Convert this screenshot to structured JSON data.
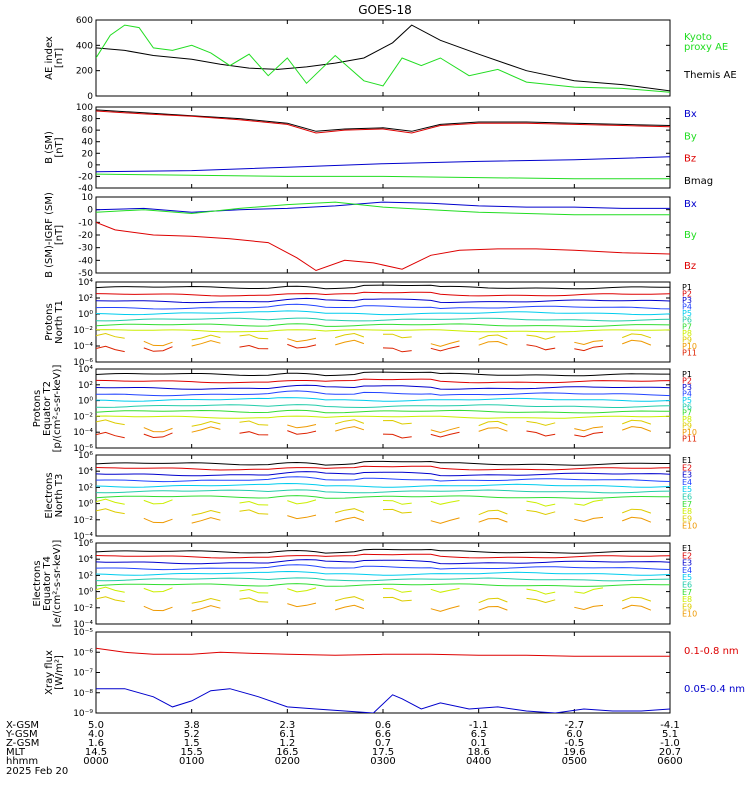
{
  "title": "GOES-18",
  "colors": {
    "black": "#000000",
    "red": "#dd0000",
    "green": "#22dd22",
    "blue": "#0000cc",
    "series": [
      "#000000",
      "#dd0000",
      "#0000cc",
      "#2244ff",
      "#00ccee",
      "#22ccaa",
      "#33dd33",
      "#ccee00",
      "#ddcc00",
      "#ee9900",
      "#dd2200",
      "#cc0000",
      "#aa0000"
    ]
  },
  "chart_data": [
    {
      "id": "ae",
      "type": "line",
      "ylabel": "AE index",
      "yunit": "[nT]",
      "ylim": [
        0,
        600
      ],
      "ticks": [
        "0",
        "200",
        "400",
        "600"
      ],
      "tick_values": [
        0,
        200,
        400,
        600
      ],
      "legend": [
        {
          "text": "Kyoto",
          "color": "#22dd22"
        },
        {
          "text": "proxy AE",
          "color": "#22dd22"
        },
        {
          "text": "Themis AE",
          "color": "#000000"
        }
      ],
      "series": [
        {
          "color": "#000000",
          "x": [
            0,
            0.3,
            0.6,
            1.0,
            1.3,
            1.6,
            1.9,
            2.2,
            2.5,
            2.8,
            3.1,
            3.3,
            3.6,
            4.0,
            4.5,
            5.0,
            5.5,
            6.0
          ],
          "y": [
            380,
            360,
            320,
            290,
            250,
            220,
            210,
            230,
            260,
            300,
            420,
            560,
            440,
            330,
            200,
            120,
            90,
            40
          ]
        },
        {
          "color": "#22dd22",
          "x": [
            0,
            0.15,
            0.3,
            0.45,
            0.6,
            0.8,
            1.0,
            1.2,
            1.4,
            1.6,
            1.8,
            2.0,
            2.2,
            2.5,
            2.8,
            3.0,
            3.2,
            3.4,
            3.6,
            3.9,
            4.2,
            4.5,
            5.0,
            5.5,
            6.0
          ],
          "y": [
            300,
            480,
            560,
            540,
            380,
            360,
            400,
            340,
            240,
            330,
            160,
            300,
            100,
            320,
            120,
            80,
            300,
            240,
            300,
            160,
            210,
            110,
            70,
            60,
            30
          ]
        }
      ]
    },
    {
      "id": "bsm",
      "type": "line",
      "ylabel": "B (SM)",
      "yunit": "[nT]",
      "ylim": [
        -40,
        100
      ],
      "ticks": [
        "100",
        "80",
        "60",
        "40",
        "20",
        "0",
        "-20",
        "-40"
      ],
      "tick_values": [
        100,
        80,
        60,
        40,
        20,
        0,
        -20,
        -40
      ],
      "legend": [
        {
          "text": "Bx",
          "color": "#0000cc"
        },
        {
          "text": "By",
          "color": "#22dd22"
        },
        {
          "text": "Bz",
          "color": "#dd0000"
        },
        {
          "text": "Bmag",
          "color": "#000000"
        }
      ],
      "series": [
        {
          "color": "#000000",
          "x": [
            0,
            0.5,
            1.0,
            1.5,
            2.0,
            2.3,
            2.6,
            3.0,
            3.3,
            3.6,
            4.0,
            4.5,
            5.0,
            5.5,
            6.0
          ],
          "y": [
            95,
            90,
            85,
            80,
            72,
            58,
            62,
            64,
            58,
            70,
            74,
            74,
            72,
            70,
            68
          ]
        },
        {
          "color": "#dd0000",
          "x": [
            0,
            0.5,
            1.0,
            1.5,
            2.0,
            2.3,
            2.6,
            3.0,
            3.3,
            3.6,
            4.0,
            4.5,
            5.0,
            5.5,
            6.0
          ],
          "y": [
            93,
            88,
            84,
            78,
            70,
            55,
            60,
            62,
            55,
            68,
            72,
            72,
            70,
            68,
            66
          ]
        },
        {
          "color": "#0000cc",
          "x": [
            0,
            1.0,
            2.0,
            3.0,
            4.0,
            5.0,
            6.0
          ],
          "y": [
            -12,
            -10,
            -4,
            2,
            6,
            9,
            14
          ]
        },
        {
          "color": "#22dd22",
          "x": [
            0,
            1.0,
            2.0,
            3.0,
            4.0,
            5.0,
            6.0
          ],
          "y": [
            -16,
            -18,
            -20,
            -20,
            -22,
            -24,
            -24
          ]
        }
      ]
    },
    {
      "id": "bigrf",
      "type": "line",
      "ylabel": "B (SM)-IGRF (SM)",
      "yunit": "[nT]",
      "ylim": [
        -50,
        10
      ],
      "ticks": [
        "10",
        "0",
        "-10",
        "-20",
        "-30",
        "-40",
        "-50"
      ],
      "tick_values": [
        10,
        0,
        -10,
        -20,
        -30,
        -40,
        -50
      ],
      "legend": [
        {
          "text": "Bx",
          "color": "#0000cc"
        },
        {
          "text": "By",
          "color": "#22dd22"
        },
        {
          "text": "Bz",
          "color": "#dd0000"
        }
      ],
      "series": [
        {
          "color": "#0000cc",
          "x": [
            0,
            0.5,
            1.0,
            1.5,
            2.0,
            2.5,
            3.0,
            3.5,
            4.0,
            4.5,
            5.0,
            5.5,
            6.0
          ],
          "y": [
            0,
            1,
            -2,
            0,
            1,
            3,
            6,
            5,
            3,
            2,
            2,
            1,
            1
          ]
        },
        {
          "color": "#22dd22",
          "x": [
            0,
            0.5,
            1.0,
            1.5,
            2.0,
            2.5,
            3.0,
            3.5,
            4.0,
            4.5,
            5.0,
            5.5,
            6.0
          ],
          "y": [
            -2,
            0,
            -3,
            1,
            4,
            6,
            2,
            0,
            -2,
            -3,
            -4,
            -4,
            -4
          ]
        },
        {
          "color": "#dd0000",
          "x": [
            0,
            0.2,
            0.6,
            1.0,
            1.4,
            1.8,
            2.1,
            2.3,
            2.6,
            2.9,
            3.2,
            3.5,
            3.8,
            4.2,
            4.6,
            5.0,
            5.5,
            6.0
          ],
          "y": [
            -10,
            -16,
            -20,
            -21,
            -23,
            -26,
            -38,
            -48,
            -40,
            -42,
            -47,
            -36,
            -32,
            -31,
            -31,
            -32,
            -34,
            -35
          ]
        }
      ]
    },
    {
      "id": "pT1",
      "type": "line",
      "scale": "log",
      "ylabel": "Protons",
      "ylabel2": "North T1",
      "ylim": [
        -6,
        4
      ],
      "ticks": [
        "10⁴",
        "10²",
        "10⁰",
        "10⁻²",
        "10⁻⁴",
        "10⁻⁶"
      ],
      "tick_values": [
        4,
        2,
        0,
        -2,
        -4,
        -6
      ],
      "legend": [
        "P1",
        "P2",
        "P3",
        "P4",
        "P5",
        "P6",
        "P7",
        "P8",
        "P9",
        "P10",
        "P11"
      ],
      "levels": [
        3.3,
        2.4,
        1.6,
        0.8,
        0.1,
        -0.7,
        -1.4,
        -2.1,
        -2.8,
        -3.6,
        -4.3
      ]
    },
    {
      "id": "pT2",
      "type": "line",
      "scale": "log",
      "ylabel": "Protons",
      "ylabel2": "Equator T2",
      "yunit": "[p/(cm²-s-sr-keV)]",
      "ylim": [
        -6,
        4
      ],
      "ticks": [
        "10⁴",
        "10²",
        "10⁰",
        "10⁻²",
        "10⁻⁴",
        "10⁻⁶"
      ],
      "tick_values": [
        4,
        2,
        0,
        -2,
        -4,
        -6
      ],
      "legend": [
        "P1",
        "P2",
        "P3",
        "P4",
        "P5",
        "P6",
        "P7",
        "P8",
        "P9",
        "P10",
        "P11"
      ],
      "levels": [
        3.3,
        2.4,
        1.6,
        0.8,
        0.1,
        -0.7,
        -1.4,
        -2.1,
        -2.8,
        -3.6,
        -4.3
      ]
    },
    {
      "id": "eT3",
      "type": "line",
      "scale": "log",
      "ylabel": "Electrons",
      "ylabel2": "North T3",
      "ylim": [
        -4,
        6
      ],
      "ticks": [
        "10⁶",
        "10⁴",
        "10²",
        "10⁰",
        "10⁻²",
        "10⁻⁴"
      ],
      "tick_values": [
        6,
        4,
        2,
        0,
        -2,
        -4
      ],
      "legend": [
        "E1",
        "E2",
        "E3",
        "E4",
        "E5",
        "E6",
        "E7",
        "E8",
        "E9",
        "E10"
      ],
      "levels": [
        4.9,
        4.3,
        3.6,
        2.9,
        2.2,
        1.5,
        0.8,
        0.1,
        -1.0,
        -2.0
      ]
    },
    {
      "id": "eT4",
      "type": "line",
      "scale": "log",
      "ylabel": "Electrons",
      "ylabel2": "Equator T4",
      "yunit": "[e/(cm²-s-sr-keV)]",
      "ylim": [
        -4,
        6
      ],
      "ticks": [
        "10⁶",
        "10⁴",
        "10²",
        "10⁰",
        "10⁻²",
        "10⁻⁴"
      ],
      "tick_values": [
        6,
        4,
        2,
        0,
        -2,
        -4
      ],
      "legend": [
        "E1",
        "E2",
        "E3",
        "E4",
        "E5",
        "E6",
        "E7",
        "E8",
        "E9",
        "E10"
      ],
      "levels": [
        4.9,
        4.3,
        3.6,
        2.9,
        2.2,
        1.5,
        0.8,
        0.1,
        -1.0,
        -2.0
      ]
    },
    {
      "id": "xray",
      "type": "line",
      "scale": "log",
      "ylabel": "Xray flux",
      "yunit": "[W/m²]",
      "ylim": [
        -9,
        -5
      ],
      "ticks": [
        "10⁻⁵",
        "10⁻⁶",
        "10⁻⁷",
        "10⁻⁸",
        "10⁻⁹"
      ],
      "tick_values": [
        -5,
        -6,
        -7,
        -8,
        -9
      ],
      "legend": [
        {
          "text": "0.1-0.8 nm",
          "color": "#dd0000"
        },
        {
          "text": "0.05-0.4 nm",
          "color": "#0000cc"
        }
      ],
      "series": [
        {
          "color": "#dd0000",
          "x": [
            0,
            0.3,
            0.6,
            1.0,
            1.3,
            1.6,
            2.0,
            2.5,
            3.0,
            3.5,
            4.0,
            4.5,
            5.0,
            5.5,
            6.0
          ],
          "y": [
            -5.8,
            -6.0,
            -6.1,
            -6.1,
            -6.0,
            -6.05,
            -6.1,
            -6.15,
            -6.1,
            -6.1,
            -6.15,
            -6.15,
            -6.2,
            -6.2,
            -6.2
          ]
        },
        {
          "color": "#0000cc",
          "x": [
            0,
            0.3,
            0.6,
            0.8,
            1.0,
            1.2,
            1.4,
            1.7,
            2.0,
            2.3,
            2.6,
            2.9,
            3.1,
            3.2,
            3.4,
            3.6,
            3.9,
            4.2,
            4.5,
            4.8,
            5.1,
            5.4,
            5.7,
            6.0
          ],
          "y": [
            -7.8,
            -7.8,
            -8.2,
            -8.7,
            -8.4,
            -7.9,
            -7.8,
            -8.2,
            -8.7,
            -8.8,
            -8.9,
            -9.0,
            -8.1,
            -8.3,
            -8.8,
            -8.5,
            -8.8,
            -8.7,
            -8.9,
            -9.0,
            -8.8,
            -8.9,
            -8.9,
            -8.8
          ]
        }
      ]
    }
  ],
  "xaxis": {
    "rows": [
      {
        "label": "X-GSM",
        "values": [
          "5.0",
          "3.8",
          "2.3",
          "0.6",
          "-1.1",
          "-2.7",
          "-4.1"
        ]
      },
      {
        "label": "Y-GSM",
        "values": [
          "4.0",
          "5.2",
          "6.1",
          "6.6",
          "6.5",
          "6.0",
          "5.1"
        ]
      },
      {
        "label": "Z-GSM",
        "values": [
          "1.6",
          "1.5",
          "1.2",
          "0.7",
          "0.1",
          "-0.5",
          "-1.0"
        ]
      },
      {
        "label": "MLT",
        "values": [
          "14.5",
          "15.5",
          "16.5",
          "17.5",
          "18.6",
          "19.6",
          "20.7"
        ]
      },
      {
        "label": "hhmm",
        "values": [
          "0000",
          "0100",
          "0200",
          "0300",
          "0400",
          "0500",
          "0600"
        ]
      }
    ],
    "tick_hours": [
      0,
      1,
      2,
      3,
      4,
      5,
      6
    ],
    "date": "2025 Feb 20"
  }
}
